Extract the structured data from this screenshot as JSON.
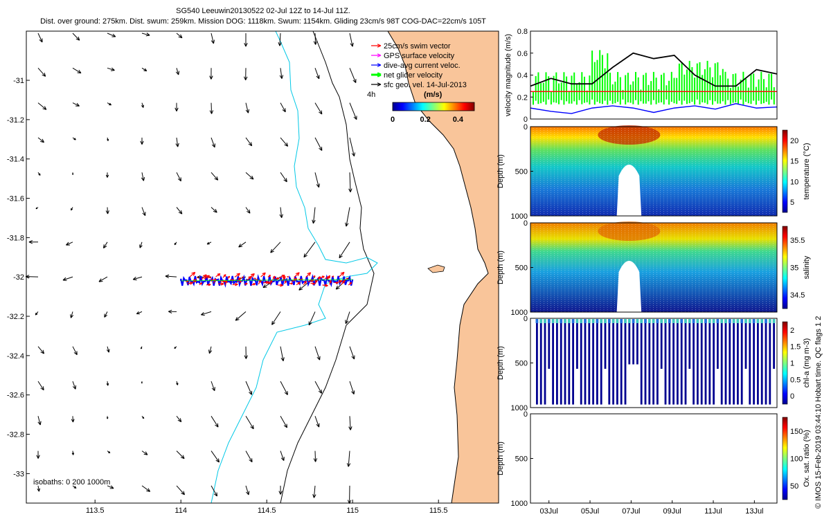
{
  "header": {
    "title_line1": "SG540 Leeuwin20130522 02-Jul 12Z to 14-Jul 11Z.",
    "title_line2": "Dist. over ground: 275km. Dist. swum: 259km. Mission DOG: 1118km. Swum: 1154km. Gliding 23cm/s 98T COG-DAC=22cm/s 105T"
  },
  "side_note": "© IMOS 15-Feb-2019 03:44:10 Hobart time. QC flags 1  2",
  "colors": {
    "land": "#f9c59a",
    "isobath_200": "#00c8e6",
    "swim_vector": "#ff0000",
    "gps_velocity": "#ff00ff",
    "dive_avg": "#0000ff",
    "net_glider": "#00ff00",
    "sfc_geo": "#000000"
  },
  "chart_data": [
    {
      "type": "map",
      "xlim": [
        113.1,
        115.85
      ],
      "ylim": [
        -33.15,
        -30.75
      ],
      "xticks": [
        "113.5",
        "114",
        "114.5",
        "115",
        "115.5"
      ],
      "yticks": [
        "-31",
        "-31.2",
        "-31.4",
        "-31.6",
        "-31.8",
        "-32",
        "-32.2",
        "-32.4",
        "-32.6",
        "-32.8",
        "-33"
      ],
      "legend": {
        "placement": "top-right",
        "entries": [
          "25cm/s swim vector",
          "GPS surface velocity",
          "dive-avg current veloc.",
          "net glider velocity",
          "sfc geo. vel. 14-Jul-2013"
        ]
      },
      "colorbar": {
        "label": "(m/s)",
        "ticks": [
          "0",
          "0.2",
          "0.4"
        ],
        "range": [
          0,
          0.5
        ],
        "note": "4h"
      },
      "isobaths_label": "isobaths: 0   200   1000m",
      "track": {
        "lon_start": 114.0,
        "lon_end": 115.0,
        "lat": -32.02
      }
    },
    {
      "type": "line",
      "ylabel": "velocity magnitude (m/s)",
      "ylim": [
        0,
        0.8
      ],
      "yticks": [
        "0",
        "0.2",
        "0.4",
        "0.6",
        "0.8"
      ],
      "series": [
        {
          "name": "geostrophic",
          "x": [
            0,
            1,
            2,
            3,
            4,
            5,
            6,
            7,
            8,
            9,
            10,
            11,
            12
          ],
          "values": [
            0.3,
            0.37,
            0.32,
            0.32,
            0.47,
            0.6,
            0.55,
            0.58,
            0.4,
            0.3,
            0.3,
            0.45,
            0.41
          ]
        },
        {
          "name": "swim",
          "x": [
            0,
            12
          ],
          "values": [
            0.25,
            0.25
          ]
        },
        {
          "name": "dive-avg",
          "x": [
            0,
            1,
            2,
            3,
            4,
            5,
            6,
            7,
            8,
            9,
            10,
            11,
            12
          ],
          "values": [
            0.1,
            0.07,
            0.05,
            0.1,
            0.12,
            0.1,
            0.06,
            0.1,
            0.12,
            0.09,
            0.14,
            0.1,
            0.11
          ]
        }
      ]
    },
    {
      "type": "heatmap",
      "ylabel": "Depth (m)",
      "clabel": "temperature (°C)",
      "cticks": [
        "5",
        "10",
        "15",
        "20"
      ],
      "yticks": [
        "0",
        "500",
        "1000"
      ]
    },
    {
      "type": "heatmap",
      "ylabel": "Depth (m)",
      "clabel": "salinity",
      "cticks": [
        "34.5",
        "35",
        "35.5"
      ],
      "yticks": [
        "0",
        "500",
        "1000"
      ]
    },
    {
      "type": "heatmap",
      "ylabel": "Depth (m)",
      "clabel": "chl-a (mg m-3)",
      "cticks": [
        "0",
        "0.5",
        "1",
        "1.5",
        "2"
      ],
      "yticks": [
        "0",
        "500",
        "1000"
      ]
    },
    {
      "type": "heatmap",
      "ylabel": "Depth (m)",
      "clabel": "Ox. sat. ratio (%)",
      "cticks": [
        "50",
        "100",
        "150"
      ],
      "yticks": [
        "0",
        "500",
        "1000"
      ],
      "xticks": [
        "03Jul",
        "05Jul",
        "07Jul",
        "09Jul",
        "11Jul",
        "13Jul"
      ]
    }
  ]
}
